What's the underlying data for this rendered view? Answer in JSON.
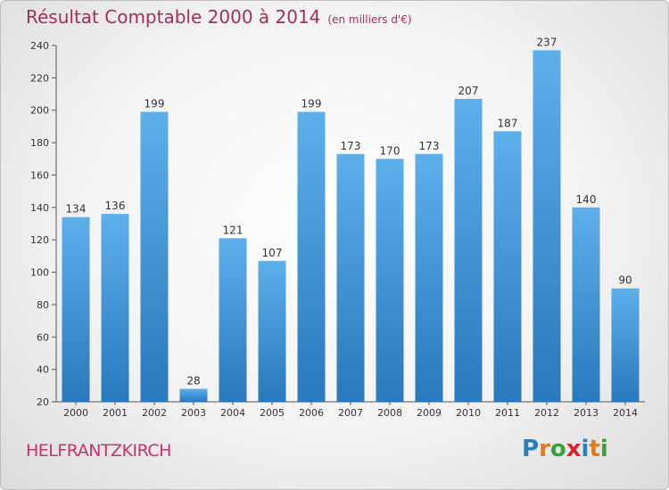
{
  "header": {
    "title": "Résultat Comptable 2000 à 2014",
    "unit": "(en milliers d'€)"
  },
  "commune": "HELFRANTZKIRCH",
  "logo": {
    "letters": [
      "P",
      "r",
      "o",
      "x",
      "i",
      "t",
      "i"
    ],
    "colors": [
      "#2a7fc1",
      "#e07b1c",
      "#3aa13a",
      "#d9262c",
      "#2a7fc1",
      "#e07b1c",
      "#3aa13a"
    ]
  },
  "chart_data": {
    "type": "bar",
    "title": "Résultat Comptable 2000 à 2014",
    "categories": [
      "2000",
      "2001",
      "2002",
      "2003",
      "2004",
      "2005",
      "2006",
      "2007",
      "2008",
      "2009",
      "2010",
      "2011",
      "2012",
      "2013",
      "2014"
    ],
    "values": [
      134,
      136,
      199,
      28,
      121,
      107,
      199,
      173,
      170,
      173,
      207,
      187,
      237,
      140,
      90
    ],
    "ylim": [
      20,
      240
    ],
    "yticks": [
      20,
      40,
      60,
      80,
      100,
      120,
      140,
      160,
      180,
      200,
      220,
      240
    ],
    "grid": false,
    "bar_color_top": "#5db0ea",
    "bar_color_bottom": "#2a78bd"
  }
}
